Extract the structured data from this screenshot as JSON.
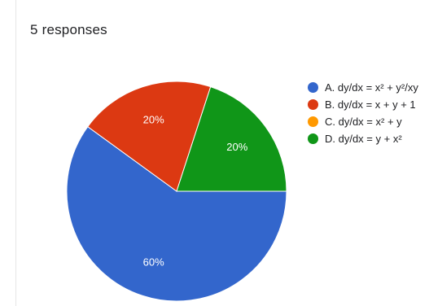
{
  "header": {
    "responses_text": "5 responses"
  },
  "chart_data": {
    "type": "pie",
    "title": "",
    "slices": [
      {
        "label": "A. dy/dx = x² + y²/xy",
        "value": 60,
        "value_label": "60%",
        "color": "#3366cc"
      },
      {
        "label": "B. dy/dx = x + y + 1",
        "value": 20,
        "value_label": "20%",
        "color": "#dc3912"
      },
      {
        "label": "C. dy/dx = x² + y",
        "value": 0,
        "value_label": "",
        "color": "#ff9900"
      },
      {
        "label": "D. dy/dx = y + x²",
        "value": 20,
        "value_label": "20%",
        "color": "#109618"
      }
    ],
    "legend_position": "right"
  }
}
